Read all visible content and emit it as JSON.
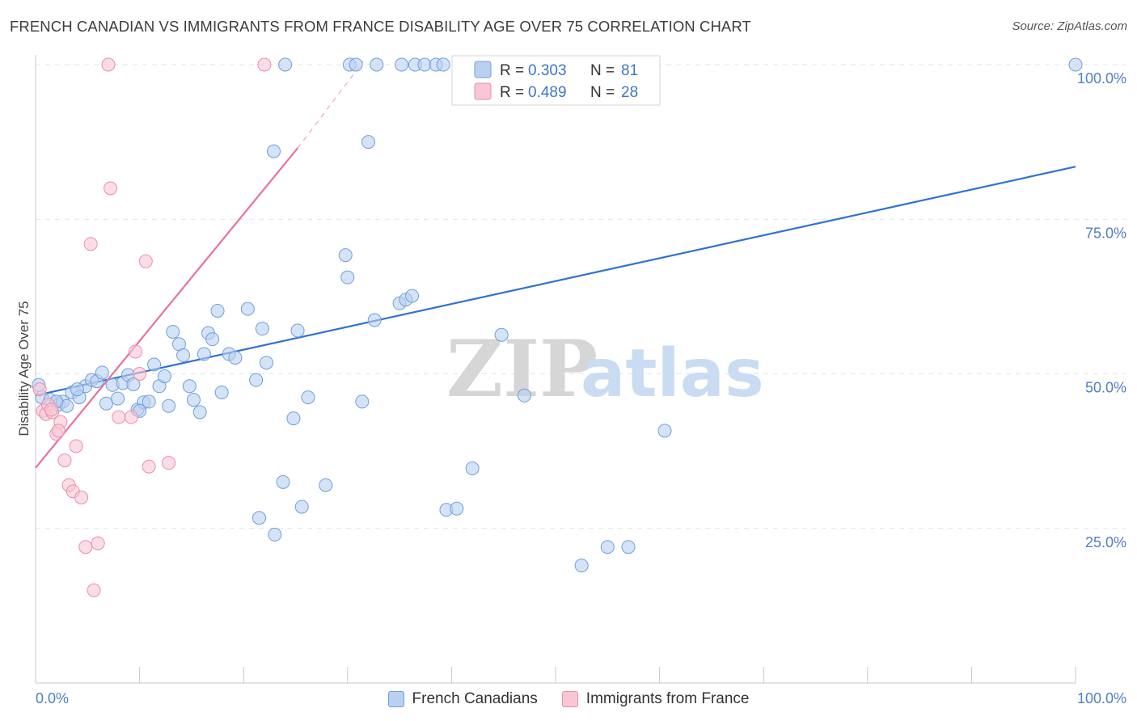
{
  "header": {
    "title": "FRENCH CANADIAN VS IMMIGRANTS FROM FRANCE DISABILITY AGE OVER 75 CORRELATION CHART",
    "source": "Source: ZipAtlas.com"
  },
  "watermark": {
    "zip": "ZIP",
    "atlas": "atlas"
  },
  "legend": {
    "rows": [
      {
        "r_label": "R = ",
        "r_value": "0.303",
        "n_label": "N = ",
        "n_value": "81"
      },
      {
        "r_label": "R = ",
        "r_value": "0.489",
        "n_label": "N = ",
        "n_value": "28"
      }
    ]
  },
  "colors": {
    "blue_fill": "#b9d0f0",
    "blue_stroke": "#6f9fdc",
    "blue_line": "#2f72d0",
    "pink_fill": "#f8c6d5",
    "pink_stroke": "#ea8eab",
    "pink_line": "#e8729b",
    "grid": "#e3e3e3",
    "axis_text": "#4f7fc7"
  },
  "chart_data": {
    "type": "scatter",
    "title": "FRENCH CANADIAN VS IMMIGRANTS FROM FRANCE DISABILITY AGE OVER 75 CORRELATION CHART",
    "xlabel": "",
    "ylabel": "Disability Age Over 75",
    "xlim": [
      0,
      100
    ],
    "ylim": [
      0,
      103
    ],
    "x_tick_labels": [
      "0.0%",
      "100.0%"
    ],
    "y_ticks": [
      25,
      50,
      75,
      100
    ],
    "y_tick_labels": [
      "25.0%",
      "50.0%",
      "75.0%",
      "100.0%"
    ],
    "series": [
      {
        "name": "French Canadians",
        "R": 0.303,
        "N": 81,
        "trend": {
          "x0": 0,
          "y0": 46.5,
          "x1": 100,
          "y1": 83.5
        },
        "points": [
          [
            0.3,
            48.2
          ],
          [
            0.6,
            46.2
          ],
          [
            1.4,
            45.8
          ],
          [
            2.2,
            45.0
          ],
          [
            2.6,
            45.5
          ],
          [
            3.0,
            44.8
          ],
          [
            3.5,
            47.0
          ],
          [
            4.2,
            46.2
          ],
          [
            4.8,
            48.0
          ],
          [
            5.4,
            49.0
          ],
          [
            5.9,
            48.8
          ],
          [
            6.4,
            50.2
          ],
          [
            6.8,
            45.2
          ],
          [
            7.4,
            48.2
          ],
          [
            7.9,
            46.0
          ],
          [
            8.4,
            48.5
          ],
          [
            8.9,
            49.8
          ],
          [
            9.4,
            48.3
          ],
          [
            9.8,
            44.2
          ],
          [
            10.4,
            45.4
          ],
          [
            10.9,
            45.5
          ],
          [
            11.4,
            51.5
          ],
          [
            11.9,
            48.0
          ],
          [
            12.4,
            49.6
          ],
          [
            12.8,
            44.8
          ],
          [
            13.2,
            56.8
          ],
          [
            13.8,
            54.8
          ],
          [
            14.2,
            53.0
          ],
          [
            14.8,
            48.0
          ],
          [
            15.2,
            45.8
          ],
          [
            15.8,
            43.8
          ],
          [
            16.2,
            53.2
          ],
          [
            16.6,
            56.6
          ],
          [
            17.0,
            55.6
          ],
          [
            17.5,
            60.2
          ],
          [
            17.9,
            47.0
          ],
          [
            18.6,
            53.2
          ],
          [
            19.2,
            52.6
          ],
          [
            20.4,
            60.5
          ],
          [
            21.2,
            49.0
          ],
          [
            21.8,
            57.3
          ],
          [
            22.2,
            51.8
          ],
          [
            22.9,
            86.0
          ],
          [
            23.8,
            32.5
          ],
          [
            24.8,
            42.8
          ],
          [
            25.2,
            57.0
          ],
          [
            25.6,
            28.5
          ],
          [
            26.2,
            46.2
          ],
          [
            23.0,
            24.0
          ],
          [
            21.5,
            26.7
          ],
          [
            27.9,
            32.0
          ],
          [
            29.8,
            69.2
          ],
          [
            30.0,
            65.6
          ],
          [
            31.4,
            45.5
          ],
          [
            32.0,
            87.5
          ],
          [
            32.6,
            58.7
          ],
          [
            35.0,
            61.4
          ],
          [
            35.6,
            62.0
          ],
          [
            36.2,
            62.6
          ],
          [
            39.5,
            28.0
          ],
          [
            40.5,
            28.2
          ],
          [
            42.0,
            34.7
          ],
          [
            44.8,
            56.3
          ],
          [
            47.0,
            46.5
          ],
          [
            52.5,
            19.0
          ],
          [
            55.0,
            22.0
          ],
          [
            57.0,
            22.0
          ],
          [
            60.5,
            40.8
          ],
          [
            24.0,
            100.0
          ],
          [
            30.2,
            100.0
          ],
          [
            30.8,
            100.0
          ],
          [
            32.8,
            100.0
          ],
          [
            35.2,
            100.0
          ],
          [
            36.5,
            100.0
          ],
          [
            37.4,
            100.0
          ],
          [
            38.5,
            100.0
          ],
          [
            39.2,
            100.0
          ],
          [
            100.0,
            100.0
          ],
          [
            2.0,
            45.5
          ],
          [
            4.0,
            47.5
          ],
          [
            10.0,
            44.0
          ]
        ]
      },
      {
        "name": "Immigrants from France",
        "R": 0.489,
        "N": 28,
        "trend": {
          "x0": 0,
          "y0": 34.8,
          "x1": 25.2,
          "y1": 86.5,
          "dash_x1": 31.5,
          "dash_y1": 100.5
        },
        "points": [
          [
            0.4,
            47.5
          ],
          [
            0.7,
            44.0
          ],
          [
            1.0,
            43.5
          ],
          [
            1.2,
            45.0
          ],
          [
            1.6,
            43.8
          ],
          [
            2.0,
            40.3
          ],
          [
            2.4,
            42.2
          ],
          [
            2.8,
            36.0
          ],
          [
            3.2,
            32.0
          ],
          [
            3.6,
            31.0
          ],
          [
            3.9,
            38.3
          ],
          [
            4.4,
            30.0
          ],
          [
            4.8,
            22.0
          ],
          [
            5.3,
            71.0
          ],
          [
            5.6,
            15.0
          ],
          [
            6.0,
            22.6
          ],
          [
            7.0,
            100.0
          ],
          [
            7.2,
            80.0
          ],
          [
            8.0,
            43.0
          ],
          [
            9.2,
            43.0
          ],
          [
            9.6,
            53.6
          ],
          [
            10.0,
            50.0
          ],
          [
            10.6,
            68.2
          ],
          [
            10.9,
            35.0
          ],
          [
            12.8,
            35.6
          ],
          [
            22.0,
            100.0
          ],
          [
            2.2,
            40.8
          ],
          [
            1.5,
            44.2
          ]
        ]
      }
    ]
  }
}
